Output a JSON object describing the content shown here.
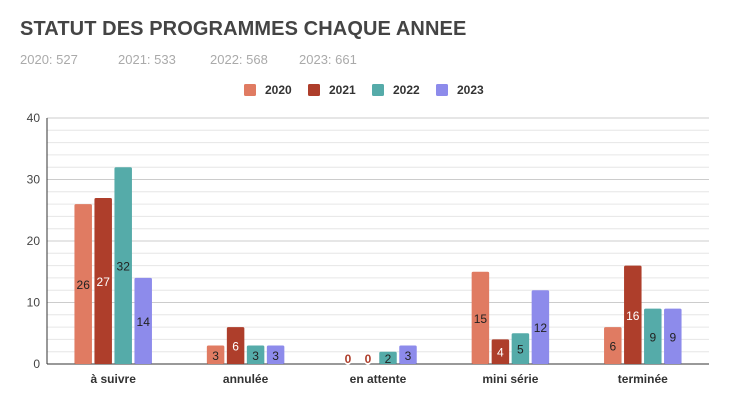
{
  "title": "STATUT DES PROGRAMMES CHAQUE ANNEE",
  "subtitle_items": [
    "2020: 527",
    "2021: 533",
    "2022: 568",
    "2023: 661"
  ],
  "chart_data": {
    "type": "bar",
    "categories": [
      "à suivre",
      "annulée",
      "en attente",
      "mini série",
      "terminée"
    ],
    "series": [
      {
        "name": "2020",
        "color": "#E07B62",
        "values": [
          26,
          3,
          0,
          15,
          6
        ]
      },
      {
        "name": "2021",
        "color": "#AE3E2B",
        "values": [
          27,
          6,
          0,
          4,
          16
        ]
      },
      {
        "name": "2022",
        "color": "#55ABA9",
        "values": [
          32,
          3,
          2,
          5,
          9
        ]
      },
      {
        "name": "2023",
        "color": "#8D8BEB",
        "values": [
          14,
          3,
          3,
          12,
          9
        ]
      }
    ],
    "ylim": [
      0,
      40
    ],
    "yticks": [
      0,
      10,
      20,
      30,
      40
    ],
    "grid": true,
    "legend_position": "top-center",
    "data_labels": true
  }
}
